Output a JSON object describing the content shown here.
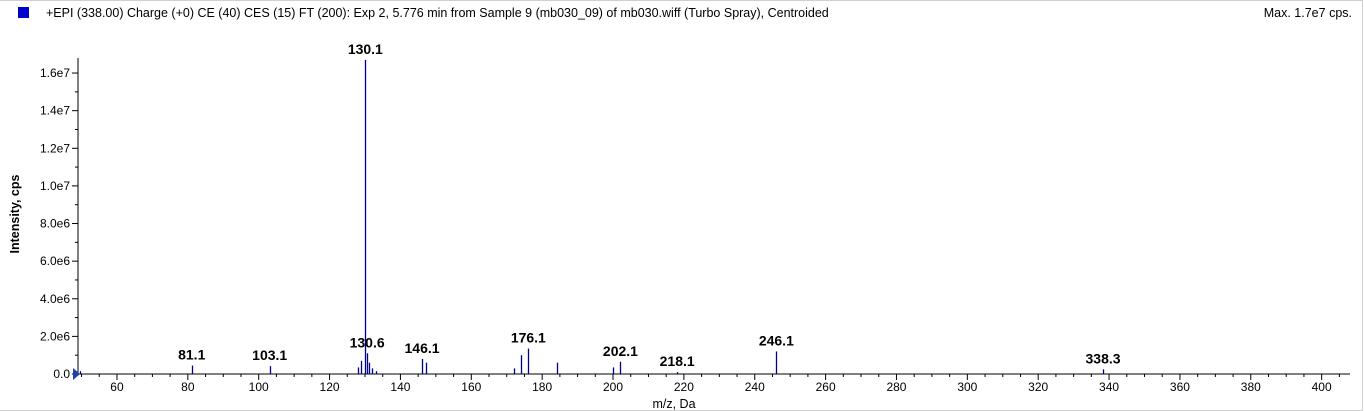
{
  "header": {
    "title": "+EPI (338.00) Charge (+0) CE (40) CES (15) FT (200): Exp 2, 5.776 min from Sample 9 (mb030_09) of mb030.wiff (Turbo Spray), Centroided",
    "max_label": "Max. 1.7e7 cps.",
    "marker_color": "#0000cc"
  },
  "chart_data": {
    "type": "bar",
    "xlabel": "m/z, Da",
    "ylabel": "Intensity, cps",
    "xlim": [
      49,
      408
    ],
    "ylim": [
      0,
      16800000
    ],
    "xticks": [
      60,
      80,
      100,
      120,
      140,
      160,
      180,
      200,
      220,
      240,
      260,
      280,
      300,
      320,
      340,
      360,
      380,
      400
    ],
    "xtick_labels": [
      "60",
      "80",
      "100",
      "120",
      "140",
      "160",
      "180",
      "200",
      "220",
      "240",
      "260",
      "280",
      "300",
      "320",
      "340",
      "360",
      "380",
      "400"
    ],
    "yticks": [
      0,
      2000000,
      4000000,
      6000000,
      8000000,
      10000000,
      12000000,
      14000000,
      16000000
    ],
    "ytick_labels": [
      "0.0",
      "2.0e6",
      "4.0e6",
      "6.0e6",
      "8.0e6",
      "1.0e7",
      "1.2e7",
      "1.4e7",
      "1.6e7"
    ],
    "bar_color": "#00008b",
    "grid": false,
    "peaks": [
      {
        "mz": 49.5,
        "intensity": 150000
      },
      {
        "mz": 81.1,
        "intensity": 450000
      },
      {
        "mz": 103.1,
        "intensity": 420000
      },
      {
        "mz": 128.0,
        "intensity": 350000
      },
      {
        "mz": 129.0,
        "intensity": 700000
      },
      {
        "mz": 130.1,
        "intensity": 16700000
      },
      {
        "mz": 130.6,
        "intensity": 1100000
      },
      {
        "mz": 131.2,
        "intensity": 600000
      },
      {
        "mz": 132.1,
        "intensity": 300000
      },
      {
        "mz": 133.0,
        "intensity": 150000
      },
      {
        "mz": 146.1,
        "intensity": 800000
      },
      {
        "mz": 147.1,
        "intensity": 600000
      },
      {
        "mz": 172.1,
        "intensity": 300000
      },
      {
        "mz": 174.1,
        "intensity": 1000000
      },
      {
        "mz": 176.1,
        "intensity": 1350000
      },
      {
        "mz": 184.1,
        "intensity": 600000
      },
      {
        "mz": 200.1,
        "intensity": 350000
      },
      {
        "mz": 202.1,
        "intensity": 650000
      },
      {
        "mz": 218.1,
        "intensity": 100000
      },
      {
        "mz": 246.1,
        "intensity": 1200000
      },
      {
        "mz": 338.3,
        "intensity": 250000
      }
    ],
    "annotations": [
      {
        "text": "130.1",
        "mz": 130.1,
        "intensity": 16700000
      },
      {
        "text": "81.1",
        "mz": 81.1,
        "intensity": 450000
      },
      {
        "text": "103.1",
        "mz": 103.1,
        "intensity": 420000
      },
      {
        "text": "130.6",
        "mz": 130.6,
        "intensity": 1100000
      },
      {
        "text": "146.1",
        "mz": 146.1,
        "intensity": 800000
      },
      {
        "text": "176.1",
        "mz": 176.1,
        "intensity": 1350000
      },
      {
        "text": "202.1",
        "mz": 202.1,
        "intensity": 650000
      },
      {
        "text": "218.1",
        "mz": 218.1,
        "intensity": 100000
      },
      {
        "text": "246.1",
        "mz": 246.1,
        "intensity": 1200000
      },
      {
        "text": "338.3",
        "mz": 338.3,
        "intensity": 250000
      }
    ]
  }
}
